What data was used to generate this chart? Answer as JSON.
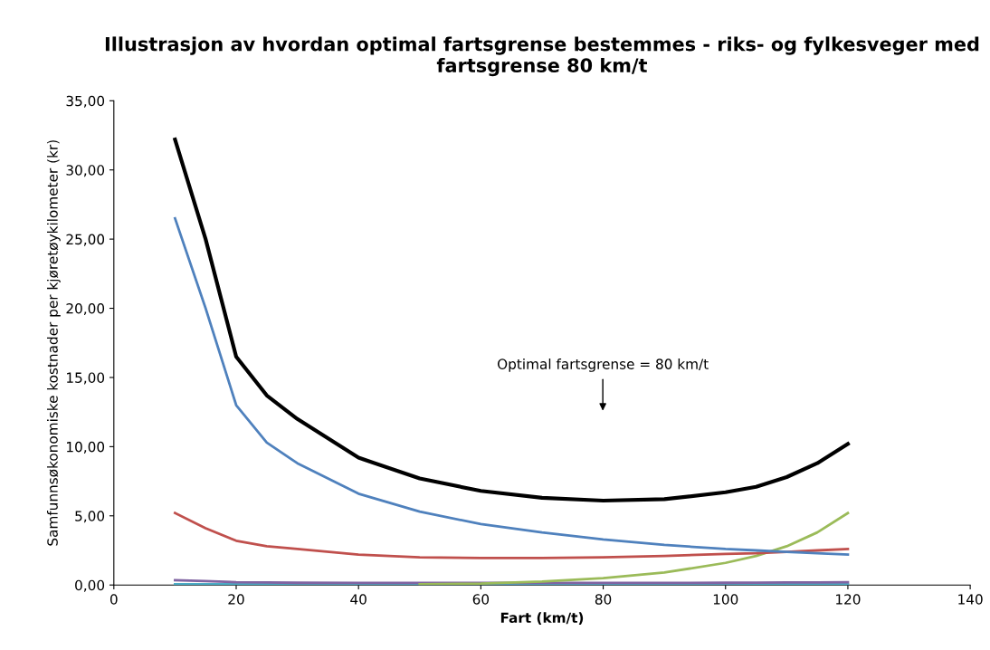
{
  "chart_data": {
    "type": "line",
    "title": "Illustrasjon av hvordan optimal fartsgrense bestemmes - riks- og fylkesveger med fartsgrense 80 km/t",
    "xlabel": "Fart (km/t)",
    "ylabel": "Samfunnsøkonomiske kostnader per kjøretøykilometer (kr)",
    "x": [
      10,
      15,
      20,
      25,
      30,
      40,
      50,
      60,
      70,
      80,
      90,
      100,
      105,
      110,
      115,
      120
    ],
    "series": [
      {
        "color": "#000000",
        "values": [
          32.2,
          25.0,
          16.5,
          13.7,
          12.0,
          9.2,
          7.7,
          6.8,
          6.3,
          6.1,
          6.2,
          6.7,
          7.1,
          7.8,
          8.8,
          10.2
        ]
      },
      {
        "color": "#4f81bd",
        "values": [
          26.5,
          20.0,
          13.0,
          10.3,
          8.8,
          6.6,
          5.3,
          4.4,
          3.8,
          3.3,
          2.9,
          2.6,
          2.5,
          2.4,
          2.3,
          2.2
        ]
      },
      {
        "color": "#c0504d",
        "values": [
          5.2,
          4.1,
          3.2,
          2.8,
          2.6,
          2.2,
          2.0,
          1.95,
          1.95,
          2.0,
          2.1,
          2.25,
          2.3,
          2.4,
          2.5,
          2.6
        ]
      },
      {
        "color": "#9bbb59",
        "values": [
          null,
          null,
          null,
          null,
          null,
          null,
          0.05,
          0.1,
          0.25,
          0.5,
          0.9,
          1.6,
          2.1,
          2.8,
          3.8,
          5.2
        ]
      },
      {
        "color": "#8064a2",
        "values": [
          0.35,
          0.28,
          0.2,
          0.18,
          0.16,
          0.15,
          0.15,
          0.15,
          0.15,
          0.15,
          0.15,
          0.16,
          0.17,
          0.18,
          0.19,
          0.2
        ]
      },
      {
        "color": "#4bacc6",
        "values": [
          0.05,
          0.05,
          0.05,
          0.05,
          0.05,
          0.05,
          0.05,
          0.05,
          0.05,
          0.05,
          0.05,
          0.05,
          0.05,
          0.05,
          0.05,
          0.05
        ]
      }
    ],
    "xlim": [
      0,
      140
    ],
    "xticks": [
      0,
      20,
      40,
      60,
      80,
      100,
      120,
      140
    ],
    "ylim": [
      0,
      35
    ],
    "yticks": [
      {
        "value": 0,
        "label": "0,00"
      },
      {
        "value": 5,
        "label": "5,00"
      },
      {
        "value": 10,
        "label": "10,00"
      },
      {
        "value": 15,
        "label": "15,00"
      },
      {
        "value": 20,
        "label": "20,00"
      },
      {
        "value": 25,
        "label": "25,00"
      },
      {
        "value": 30,
        "label": "30,00"
      },
      {
        "value": 35,
        "label": "35,00"
      }
    ],
    "annotations": [
      "Optimal fartsgrense = 80 km/t"
    ],
    "grid": false,
    "marker": "none",
    "line_style": "solid"
  }
}
